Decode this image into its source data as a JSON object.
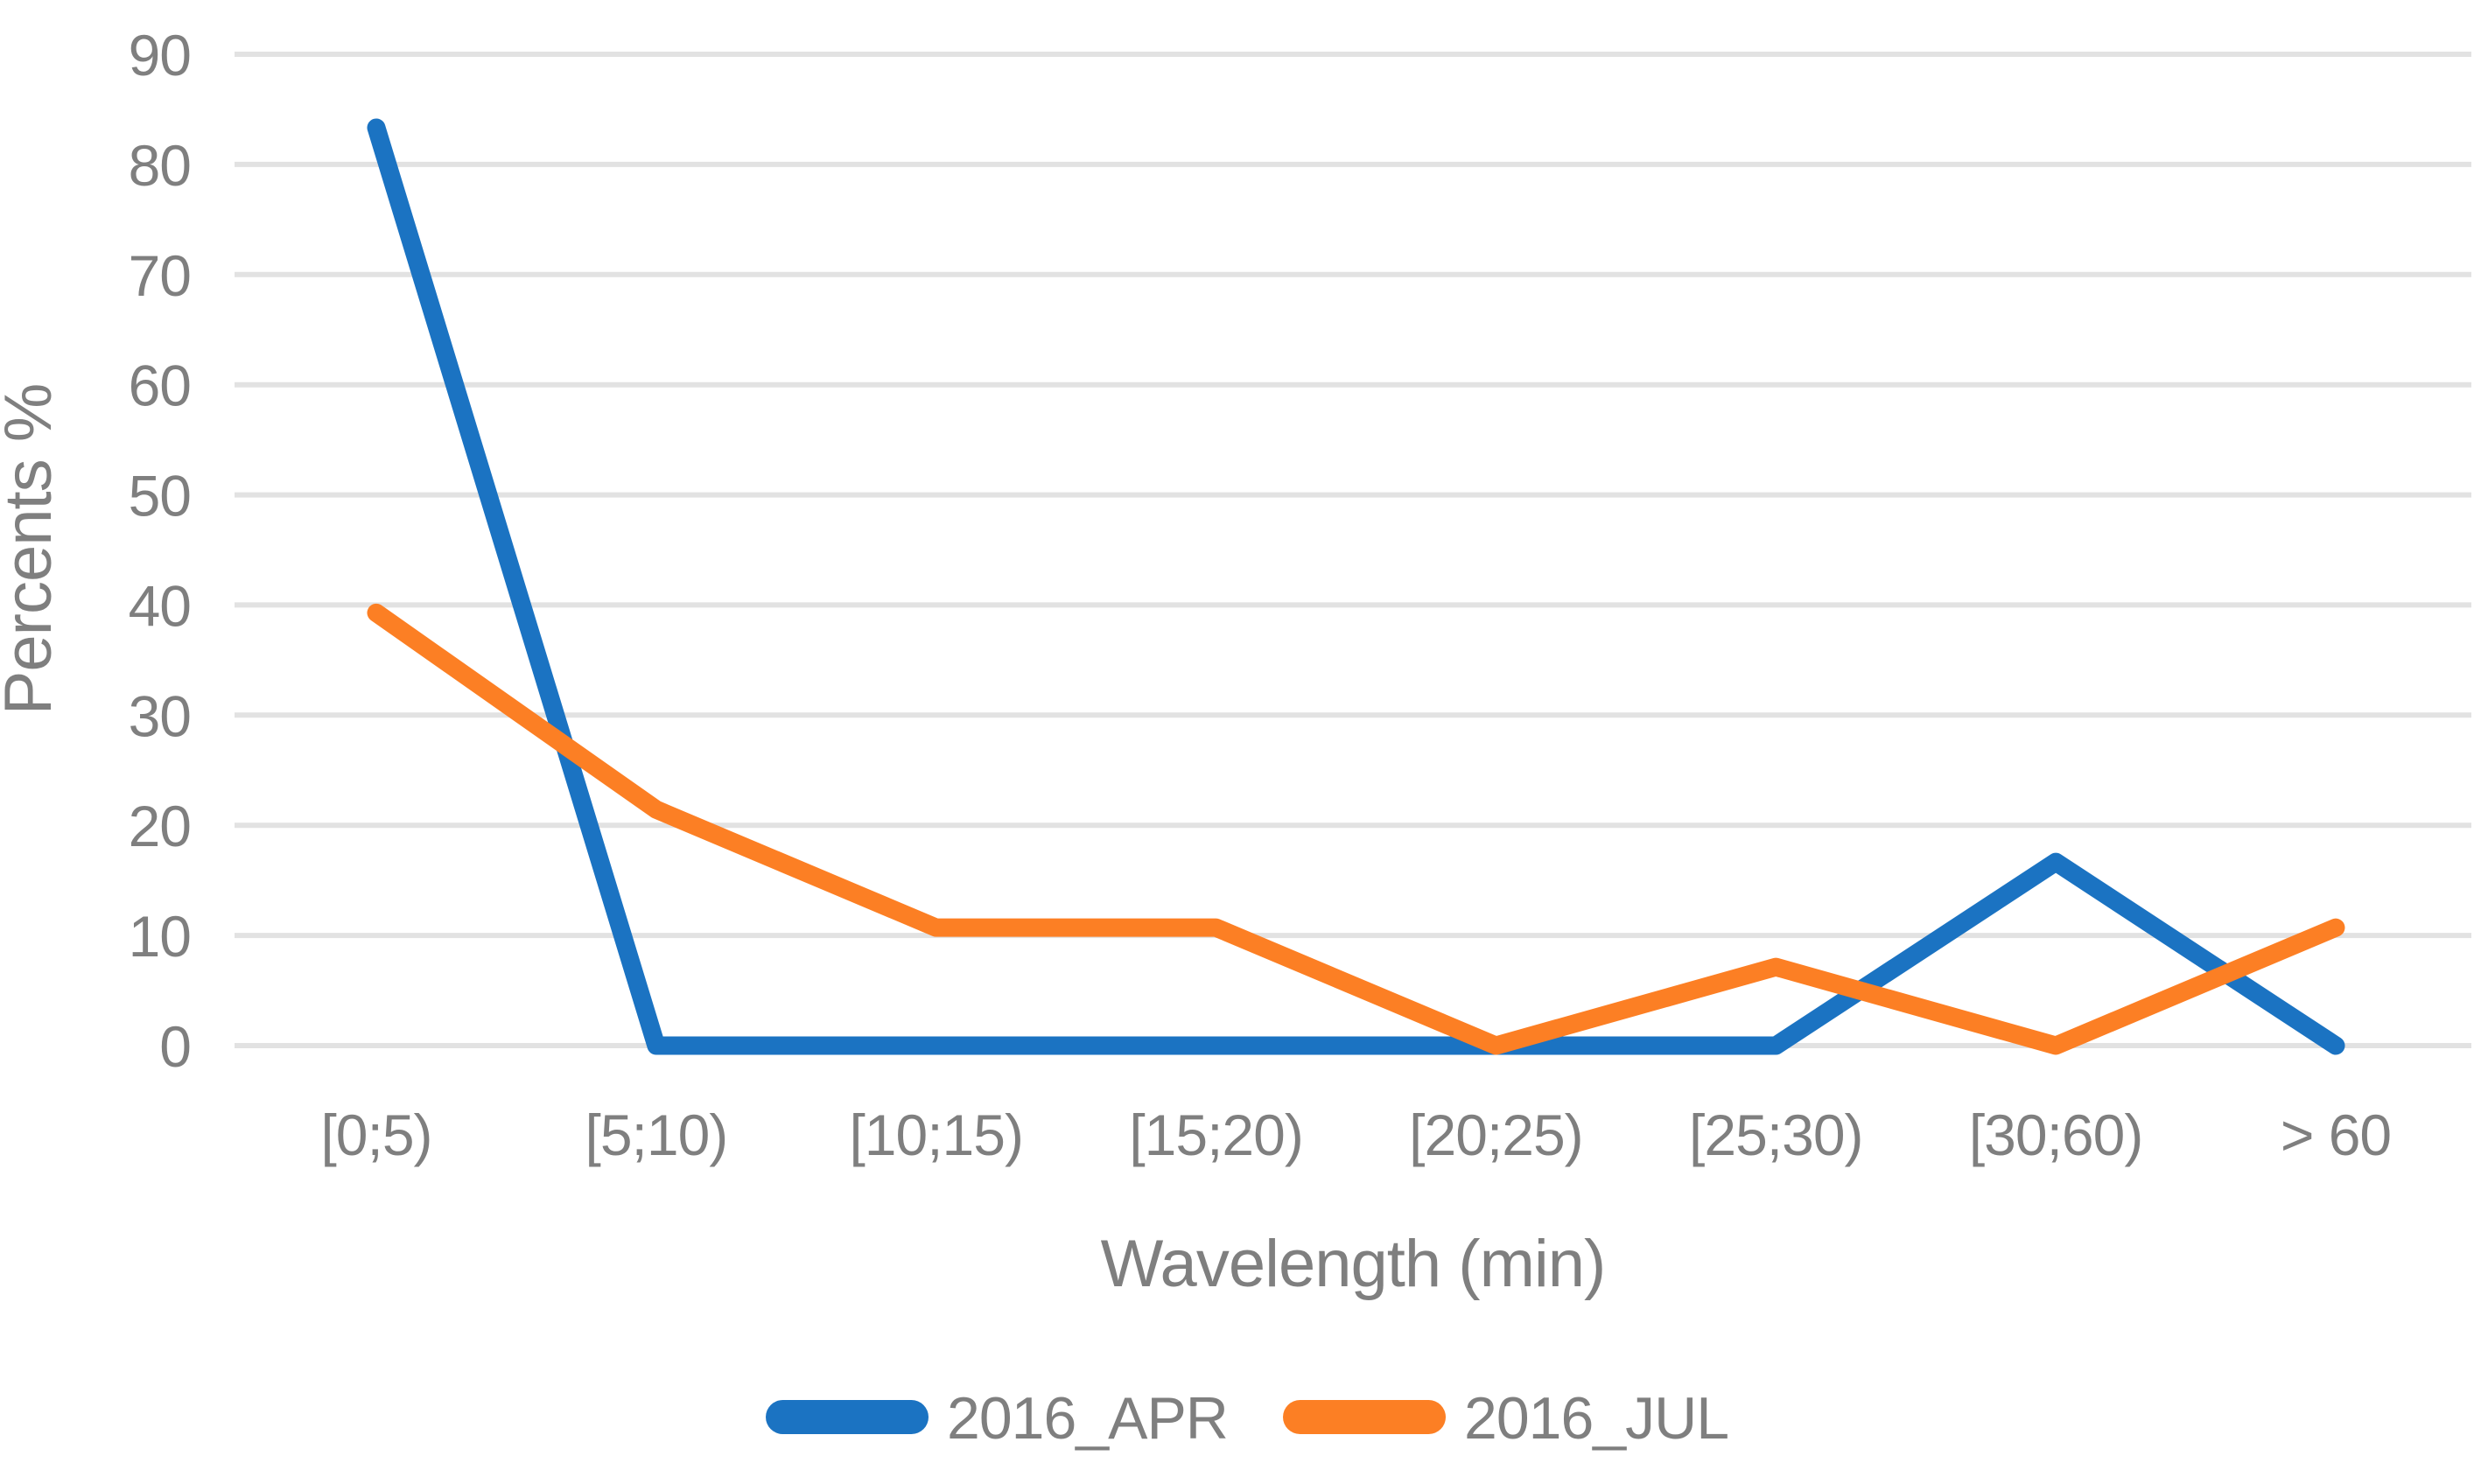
{
  "figure": {
    "background_color": "#ffffff",
    "label_color": "#7f7f7f",
    "gridline_color": "#e2e2e2"
  },
  "chart_data": {
    "type": "line",
    "categories": [
      "[0;5)",
      "[5;10)",
      "[10;15)",
      "[15;20)",
      "[20;25)",
      "[25;30)",
      "[30;60)",
      "> 60"
    ],
    "series": [
      {
        "name": "2016_APR",
        "color": "#1b73c2",
        "values": [
          83.33,
          0,
          0,
          0,
          0,
          0,
          16.67,
          0
        ]
      },
      {
        "name": "2016_JUL",
        "color": "#fc7f24",
        "values": [
          39.29,
          21.43,
          10.71,
          10.71,
          0,
          7.14,
          0,
          10.71
        ]
      }
    ],
    "title": "",
    "xlabel": "Wavelength (min)",
    "ylabel": "Percents %",
    "ylim": [
      0,
      90
    ],
    "yticks": [
      0,
      10,
      20,
      30,
      40,
      50,
      60,
      70,
      80,
      90
    ],
    "ytick_labels": [
      "0",
      "10",
      "20",
      "30",
      "40",
      "50",
      "60",
      "70",
      "80",
      "90"
    ],
    "grid": "horizontal",
    "legend_position": "bottom"
  }
}
